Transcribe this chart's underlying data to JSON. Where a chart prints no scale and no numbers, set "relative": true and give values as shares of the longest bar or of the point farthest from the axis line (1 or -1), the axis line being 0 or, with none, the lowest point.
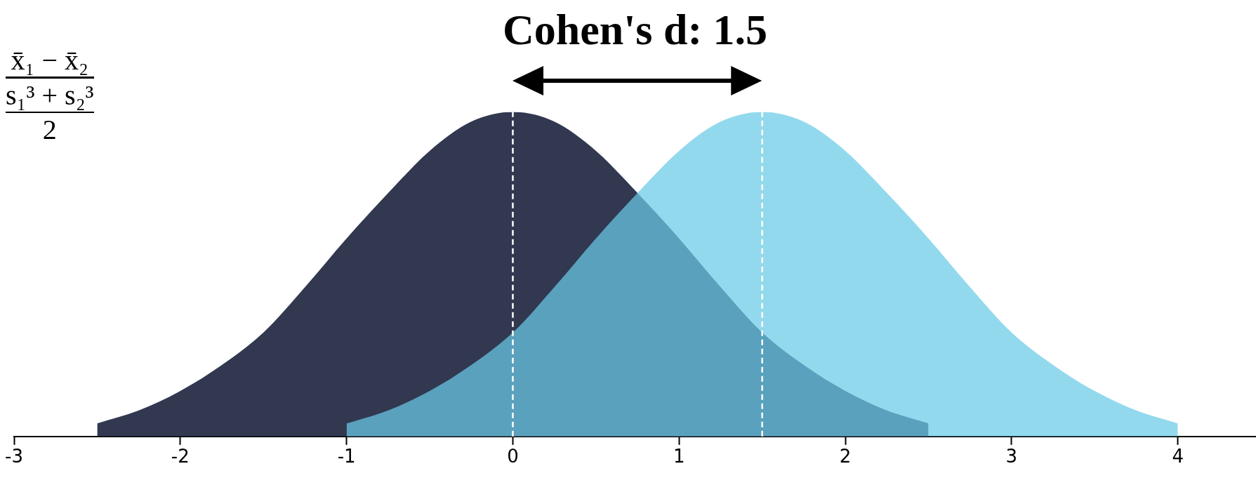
{
  "chart_data": {
    "type": "area",
    "title": "Cohen's d: 1.5",
    "relative": true,
    "legend": false,
    "grid": false,
    "marker": "none",
    "xlim": [
      -3,
      4.47
    ],
    "xticks": [
      -3,
      -2,
      -1,
      0,
      1,
      2,
      3,
      4
    ],
    "annotations": [
      "x̄₁ − x̄₂",
      "s₁³ + s₂³",
      "2"
    ],
    "ref_lines": [
      {
        "axis": "x",
        "value": 0,
        "color": "#ffffff",
        "line_style": "dashed"
      },
      {
        "axis": "x",
        "value": 1.5,
        "color": "#ffffff",
        "line_style": "dashed"
      }
    ],
    "series": [
      {
        "color": "#313850",
        "x": [
          -2.5,
          -2.25,
          -2,
          -1.75,
          -1.5,
          -1.25,
          -1,
          -0.75,
          -0.5,
          -0.25,
          0,
          0.25,
          0.5,
          0.75,
          1,
          1.25,
          1.5,
          1.75,
          2,
          2.25,
          2.5
        ],
        "values": [
          0.04,
          0.08,
          0.14,
          0.22,
          0.32,
          0.46,
          0.61,
          0.75,
          0.88,
          0.97,
          1,
          0.97,
          0.88,
          0.75,
          0.61,
          0.46,
          0.32,
          0.22,
          0.14,
          0.08,
          0.04
        ]
      },
      {
        "color": "#69cbe8",
        "x": [
          -1,
          -0.75,
          -0.5,
          -0.25,
          0,
          0.25,
          0.5,
          0.75,
          1,
          1.25,
          1.5,
          1.75,
          2,
          2.25,
          2.5,
          2.75,
          3,
          3.25,
          3.5,
          3.75,
          4
        ],
        "values": [
          0.04,
          0.08,
          0.14,
          0.22,
          0.32,
          0.46,
          0.61,
          0.75,
          0.88,
          0.97,
          1,
          0.97,
          0.88,
          0.75,
          0.61,
          0.46,
          0.32,
          0.22,
          0.14,
          0.08,
          0.04
        ]
      }
    ]
  }
}
